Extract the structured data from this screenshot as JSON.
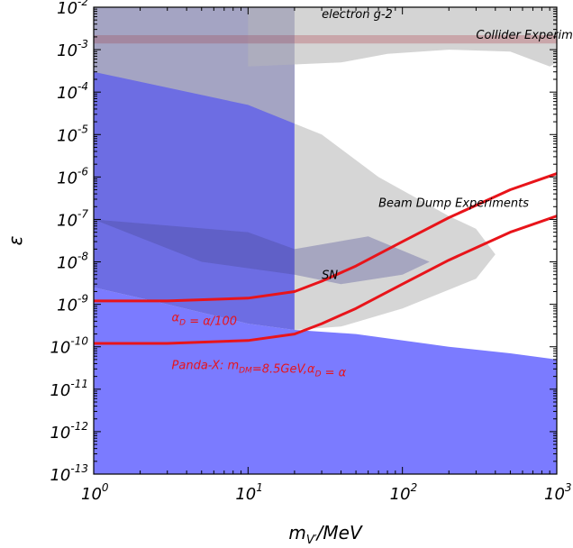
{
  "chart_data": {
    "type": "area",
    "xscale": "log",
    "yscale": "log",
    "xlim": [
      1,
      1000
    ],
    "ylim": [
      1e-13,
      0.01
    ],
    "xlabel_base": "m",
    "xlabel_sub": "V′",
    "xlabel_unit": "/MeV",
    "ylabel": "ε",
    "x_ticks": [
      {
        "base": "10",
        "exp": "0"
      },
      {
        "base": "10",
        "exp": "1"
      },
      {
        "base": "10",
        "exp": "2"
      },
      {
        "base": "10",
        "exp": "3"
      }
    ],
    "y_ticks": [
      {
        "base": "10",
        "exp": "-2"
      },
      {
        "base": "10",
        "exp": "-3"
      },
      {
        "base": "10",
        "exp": "-4"
      },
      {
        "base": "10",
        "exp": "-5"
      },
      {
        "base": "10",
        "exp": "-6"
      },
      {
        "base": "10",
        "exp": "-7"
      },
      {
        "base": "10",
        "exp": "-8"
      },
      {
        "base": "10",
        "exp": "-9"
      },
      {
        "base": "10",
        "exp": "-10"
      },
      {
        "base": "10",
        "exp": "-11"
      },
      {
        "base": "10",
        "exp": "-12"
      },
      {
        "base": "10",
        "exp": "-13"
      }
    ],
    "colors": {
      "excluded_blue": "#7b7bff",
      "beam_dump_gray": "#cfcfcf",
      "dark_overlap": "#4c4c99",
      "g2_band": "#c07f86",
      "curve": "#e8141a",
      "curve_label": "#e8141a"
    },
    "regions": [
      {
        "name": "Blue excluded (lower)",
        "points": [
          [
            1,
            1e-13
          ],
          [
            1000,
            1e-13
          ],
          [
            1000,
            5e-11
          ],
          [
            500,
            7e-11
          ],
          [
            200,
            1e-10
          ],
          [
            50,
            2e-10
          ],
          [
            20,
            2.5e-10
          ],
          [
            10,
            3.5e-10
          ],
          [
            3,
            1e-09
          ],
          [
            1,
            2.5e-09
          ]
        ]
      },
      {
        "name": "Blue excluded (upper block)",
        "points": [
          [
            1,
            2.5e-09
          ],
          [
            1,
            0.01
          ],
          [
            20,
            0.01
          ],
          [
            20,
            2.5e-10
          ],
          [
            10,
            3.5e-10
          ],
          [
            3,
            1e-09
          ]
        ]
      },
      {
        "name": "Beam Dump Experiments",
        "points": [
          [
            1,
            0.01
          ],
          [
            1,
            0.0003
          ],
          [
            10,
            5e-05
          ],
          [
            30,
            1e-05
          ],
          [
            70,
            1e-06
          ],
          [
            200,
            1.2e-07
          ],
          [
            300,
            6e-08
          ],
          [
            400,
            1.5e-08
          ],
          [
            300,
            4e-09
          ],
          [
            100,
            8e-10
          ],
          [
            40,
            3e-10
          ],
          [
            20,
            2.5e-10
          ],
          [
            20,
            0.01
          ]
        ]
      },
      {
        "name": "SN",
        "points": [
          [
            1,
            1e-07
          ],
          [
            10,
            5e-08
          ],
          [
            20,
            2e-08
          ],
          [
            60,
            4e-08
          ],
          [
            150,
            1e-08
          ],
          [
            100,
            5e-09
          ],
          [
            40,
            3e-09
          ],
          [
            20,
            5e-09
          ],
          [
            5,
            1e-08
          ]
        ]
      },
      {
        "name": "Collider Experiments",
        "points": [
          [
            10,
            0.01
          ],
          [
            1000,
            0.01
          ],
          [
            1000,
            0.0005
          ],
          [
            900,
            0.0004
          ],
          [
            500,
            0.0009
          ],
          [
            200,
            0.001
          ],
          [
            80,
            0.0008
          ],
          [
            40,
            0.0005
          ],
          [
            10,
            0.0004
          ]
        ]
      },
      {
        "name": "electron g-2",
        "points": [
          [
            1,
            0.0022
          ],
          [
            1000,
            0.0022
          ],
          [
            1000,
            0.0014
          ],
          [
            1,
            0.0014
          ]
        ]
      }
    ],
    "series": [
      {
        "name": "αD = α/100",
        "x": [
          1,
          3,
          10,
          20,
          30,
          50,
          100,
          200,
          500,
          1000
        ],
        "y": [
          1.2e-09,
          1.2e-09,
          1.4e-09,
          2e-09,
          3.5e-09,
          8e-09,
          3e-08,
          1.1e-07,
          5e-07,
          1.2e-06
        ]
      },
      {
        "name": "Panda-X: mDM=8.5GeV, αD = α",
        "x": [
          1,
          3,
          10,
          20,
          30,
          50,
          100,
          200,
          500,
          1000
        ],
        "y": [
          1.2e-10,
          1.2e-10,
          1.4e-10,
          2e-10,
          3.5e-10,
          8e-10,
          3e-09,
          1.1e-08,
          5e-08,
          1.2e-07
        ]
      }
    ],
    "annotations": [
      {
        "text": "electron g-2",
        "x": 30,
        "y": 0.0055,
        "color": "#000000"
      },
      {
        "text": "Collider Experiments",
        "x": 300,
        "y": 0.0018,
        "color": "#000000"
      },
      {
        "text": "Beam Dump Experiments",
        "x": 70,
        "y": 2e-07,
        "color": "#000000"
      },
      {
        "text": "SN",
        "x": 30,
        "y": 4e-09,
        "color": "#000000"
      },
      {
        "text_base": "α",
        "text_sub": "D",
        "text_rest": " = α/100",
        "x": 3.2,
        "y": 4e-10,
        "color": "#e8141a"
      },
      {
        "text_base": "Panda-X: m",
        "text_sub": "DM",
        "text_mid": "=8.5GeV,α",
        "text_sub2": "D",
        "text_rest": " = α",
        "x": 3.2,
        "y": 3e-11,
        "color": "#e8141a"
      }
    ]
  }
}
